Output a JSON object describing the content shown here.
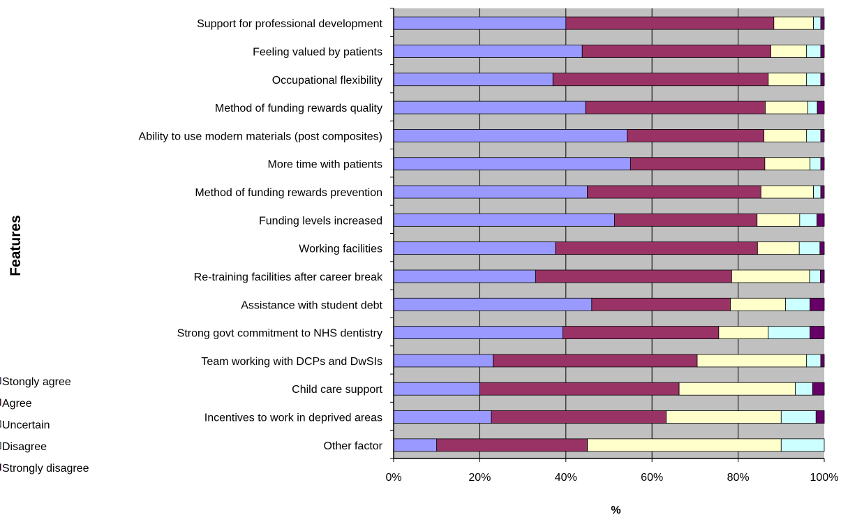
{
  "chart_data": {
    "type": "bar",
    "orientation": "horizontal",
    "stacked": "percent",
    "categories": [
      "Support for professional development",
      "Feeling valued by patients",
      "Occupational flexibility",
      "Method of funding rewards quality",
      "Ability to use modern materials (post composites)",
      "More time with patients",
      "Method of funding rewards prevention",
      "Funding levels increased",
      "Working facilities",
      "Re-training facilities after career break",
      "Assistance with student debt",
      "Strong govt commitment to NHS dentistry",
      "Team working with DCPs and DwSIs",
      "Child care support",
      "Incentives to work in deprived areas",
      "Other factor"
    ],
    "series": [
      {
        "name": "Stongly agree",
        "color": "#9999ff",
        "values": [
          40,
          43.8,
          37,
          44.6,
          54.2,
          55,
          45,
          51.3,
          37.6,
          33,
          46,
          39.3,
          23.1,
          20,
          22.7,
          10
        ]
      },
      {
        "name": "Agree",
        "color": "#993366",
        "values": [
          48.3,
          43.8,
          50,
          41.7,
          31.8,
          31.2,
          40.3,
          33.1,
          46.9,
          45.5,
          32.2,
          36.2,
          47.4,
          46.3,
          40.6,
          35
        ]
      },
      {
        "name": "Uncertain",
        "color": "#ffffcc",
        "values": [
          9.2,
          8.3,
          8.9,
          9.9,
          9.9,
          10.5,
          12.2,
          9.9,
          9.7,
          18.1,
          12.8,
          11.5,
          25.4,
          27,
          26.7,
          45
        ]
      },
      {
        "name": "Disagree",
        "color": "#ccffff",
        "values": [
          1.7,
          3.3,
          3.3,
          2.2,
          3.3,
          2.5,
          1.7,
          4,
          4.8,
          2.5,
          5.7,
          9.7,
          3.3,
          4,
          8.1,
          10
        ]
      },
      {
        "name": "Strongly disagree",
        "color": "#660066",
        "values": [
          0.8,
          0.8,
          0.8,
          1.6,
          0.8,
          0.8,
          0.8,
          1.7,
          1,
          0.9,
          3.3,
          3.3,
          0.8,
          2.7,
          1.9,
          0
        ]
      }
    ],
    "xlabel": "%",
    "ylabel": "Features",
    "xlim": [
      0,
      100
    ],
    "xticks": [
      "0%",
      "20%",
      "40%",
      "60%",
      "80%",
      "100%"
    ],
    "grid": "vertical",
    "legend_position": "left",
    "plot_background": "#c0c0c0"
  }
}
